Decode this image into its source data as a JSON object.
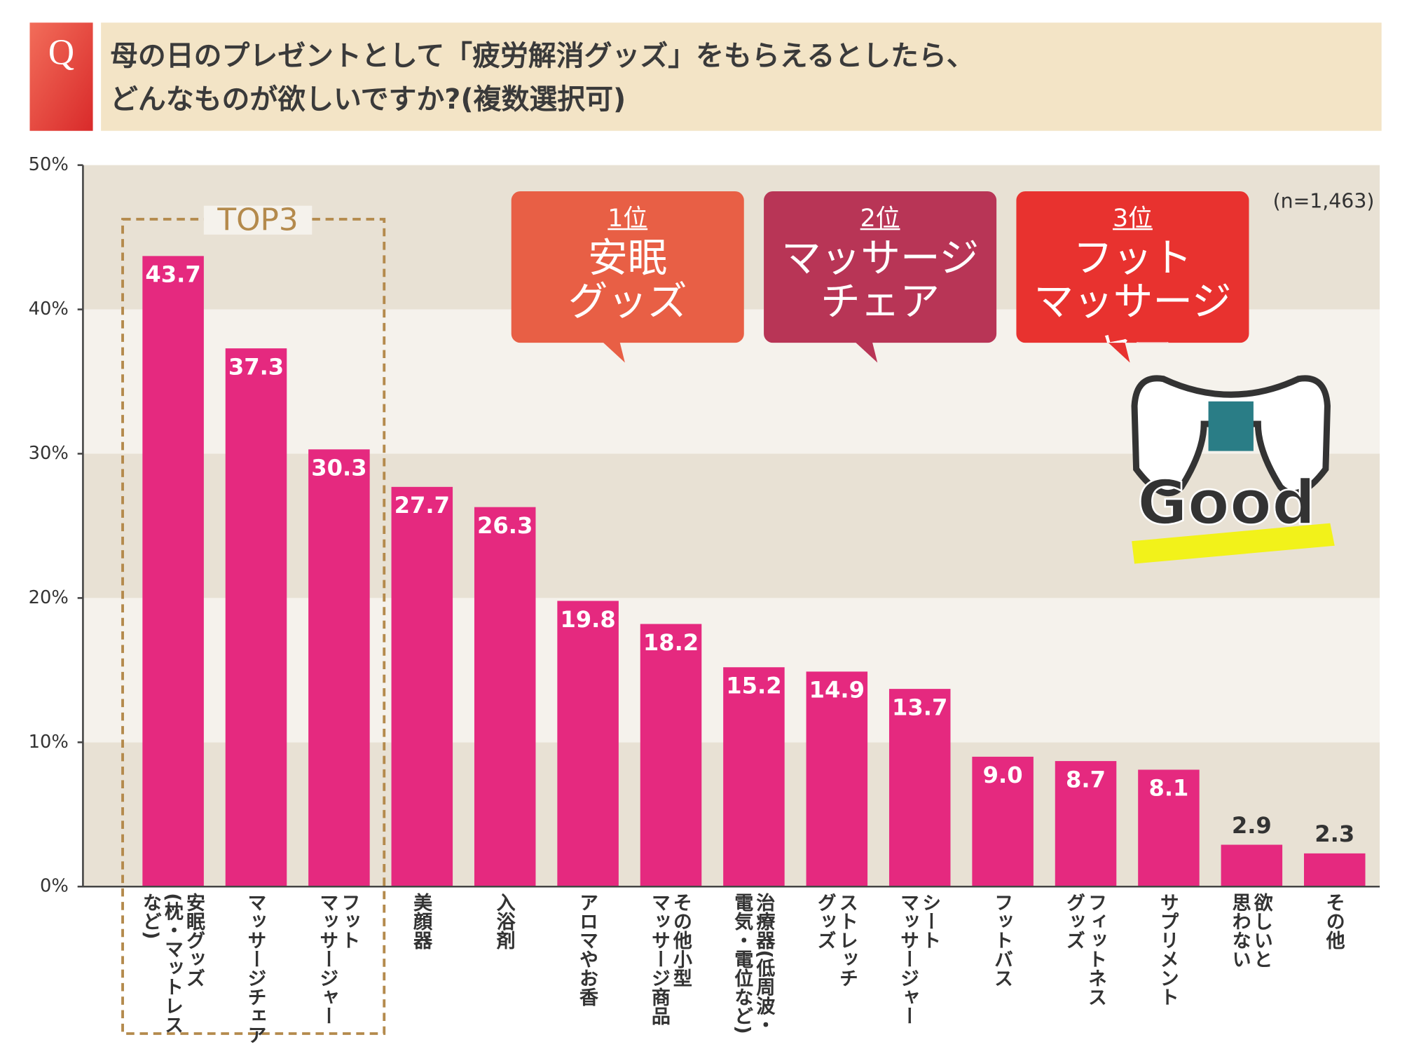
{
  "header": {
    "q": "Q",
    "question": [
      "母の日のプレゼントとして「疲労解消グッズ」をもらえるとしたら、",
      "どんなものが欲しいですか?(複数選択可)"
    ]
  },
  "chart_data": {
    "type": "bar",
    "categories": [
      "安眠グッズ\n(枕・マットレスなど)",
      "マッサージチェア",
      "フット\nマッサージャー",
      "美顔器",
      "入浴剤",
      "アロマやお香",
      "その他小型\nマッサージ商品",
      "治療器(低周波・\n電気・電位など)",
      "ストレッチ\nグッズ",
      "シート\nマッサージャー",
      "フットバス",
      "フィットネス\nグッズ",
      "サプリメント",
      "欲しいと\n思わない",
      "その他"
    ],
    "values": [
      43.7,
      37.3,
      30.3,
      27.7,
      26.3,
      19.8,
      18.2,
      15.2,
      14.9,
      13.7,
      9.0,
      8.7,
      8.1,
      2.9,
      2.3
    ],
    "value_labels": [
      "43.7",
      "37.3",
      "30.3",
      "27.7",
      "26.3",
      "19.8",
      "18.2",
      "15.2",
      "14.9",
      "13.7",
      "9.0",
      "8.7",
      "8.1",
      "2.9",
      "2.3"
    ],
    "color": "#e5297f",
    "ylim": [
      0,
      50
    ],
    "yticks": [
      {
        "value": 0,
        "label": "0%"
      },
      {
        "value": 10,
        "label": "10%"
      },
      {
        "value": 20,
        "label": "20%"
      },
      {
        "value": 30,
        "label": "30%"
      },
      {
        "value": 40,
        "label": "40%"
      },
      {
        "value": 50,
        "label": "50%"
      }
    ],
    "band_colors": [
      "#e8e1d4",
      "#f5f2ec"
    ],
    "sample_note": "(n=1,463)",
    "top3_label": "TOP3",
    "ranks": [
      {
        "rank": "1位",
        "name": "安眠\nグッズ",
        "color": "#e85f45"
      },
      {
        "rank": "2位",
        "name": "マッサージ\nチェア",
        "color": "#b83556"
      },
      {
        "rank": "3位",
        "name": "フット\nマッサージャー",
        "color": "#e8322f"
      }
    ],
    "badge": "Good"
  }
}
